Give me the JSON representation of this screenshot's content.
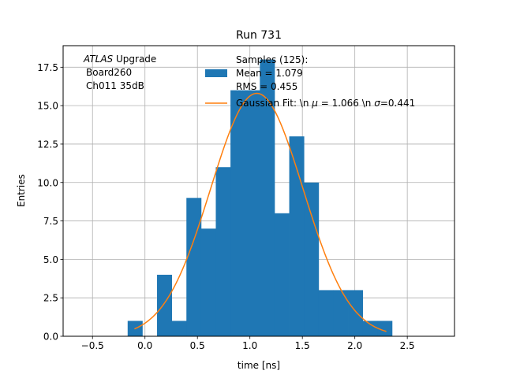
{
  "chart_data": {
    "type": "bar",
    "title": "Run 731",
    "xlabel": "time [ns]",
    "ylabel": "Entries",
    "xlim": [
      -0.78,
      2.95
    ],
    "ylim": [
      0,
      18.9
    ],
    "grid": true,
    "legend_position": "top-right",
    "x_ticks": [
      -0.5,
      0.0,
      0.5,
      1.0,
      1.5,
      2.0,
      2.5
    ],
    "x_tick_labels": [
      "−0.5",
      "0.0",
      "0.5",
      "1.0",
      "1.5",
      "2.0",
      "2.5"
    ],
    "y_ticks": [
      0.0,
      2.5,
      5.0,
      7.5,
      10.0,
      12.5,
      15.0,
      17.5
    ],
    "y_tick_labels": [
      "0.0",
      "2.5",
      "5.0",
      "7.5",
      "10.0",
      "12.5",
      "15.0",
      "17.5"
    ],
    "annotation": {
      "line1_italic": "ATLAS",
      "line1_rest": " Upgrade",
      "line2": "Board260",
      "line3": "Ch011 35dB"
    },
    "histogram": {
      "name": "Samples (125):",
      "stats_lines": [
        " Mean = 1.079",
        " RMS = 0.455"
      ],
      "color": "#1f77b4",
      "bin_edges": [
        -0.165,
        -0.025,
        0.115,
        0.255,
        0.395,
        0.535,
        0.675,
        0.815,
        0.955,
        1.095,
        1.235,
        1.375,
        1.515,
        1.655,
        1.795,
        1.935,
        2.075,
        2.215,
        2.355
      ],
      "counts": [
        1,
        0,
        4,
        1,
        9,
        7,
        11,
        16,
        16,
        18,
        8,
        13,
        10,
        3,
        3,
        3,
        1,
        1
      ]
    },
    "fit": {
      "name_prefix": "Gaussian Fit: \\n ",
      "name_mu": "μ",
      "name_mid": " = 1.066 \\n ",
      "name_sigma": "σ",
      "name_suffix": "=0.441",
      "color": "#ff7f0e",
      "amplitude": 15.8,
      "mu": 1.066,
      "sigma": 0.441,
      "x_range": [
        -0.1,
        2.3
      ]
    }
  }
}
